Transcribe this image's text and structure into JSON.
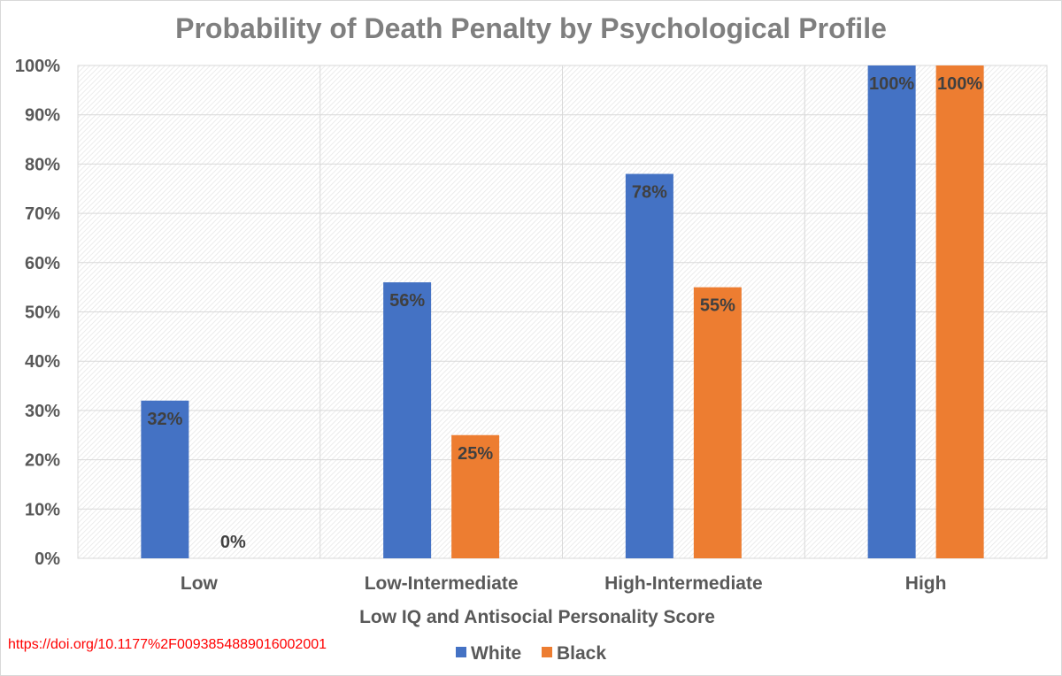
{
  "chart_data": {
    "type": "bar",
    "title": "Probability of Death Penalty by Psychological Profile",
    "xlabel": "Low IQ and Antisocial Personality Score",
    "ylabel": "",
    "categories": [
      "Low",
      "Low-Intermediate",
      "High-Intermediate",
      "High"
    ],
    "series": [
      {
        "name": "White",
        "color": "#4472c4",
        "values": [
          32,
          56,
          78,
          100
        ],
        "labels": [
          "32%",
          "56%",
          "78%",
          "100%"
        ]
      },
      {
        "name": "Black",
        "color": "#ed7d31",
        "values": [
          0,
          25,
          55,
          100
        ],
        "labels": [
          "0%",
          "25%",
          "55%",
          "100%"
        ]
      }
    ],
    "ylim": [
      0,
      100
    ],
    "yticks": [
      "0%",
      "10%",
      "20%",
      "30%",
      "40%",
      "50%",
      "60%",
      "70%",
      "80%",
      "90%",
      "100%"
    ],
    "grid": true,
    "legend": "bottom"
  },
  "source_url": "https://doi.org/10.1177%2F0093854889016002001"
}
